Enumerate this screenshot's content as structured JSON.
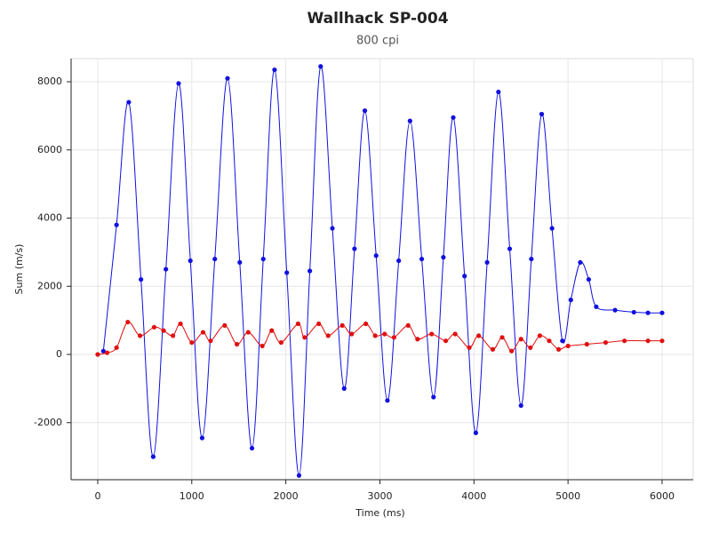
{
  "chart_data": {
    "type": "line",
    "title": "Wallhack SP-004",
    "subtitle": "800 cpi",
    "x_label": "Time (ms)",
    "y_label": "Sum (m/s)",
    "xlim": [
      -283,
      6331
    ],
    "ylim": [
      -3674,
      8678
    ],
    "xticks": [
      0,
      1000,
      2000,
      3000,
      4000,
      5000,
      6000
    ],
    "yticks": [
      -2000,
      0,
      2000,
      4000,
      6000,
      8000
    ],
    "grid": true,
    "series": [
      {
        "color": "#1010e0",
        "x": [
          60,
          200,
          330,
          460,
          590,
          725,
          860,
          985,
          1110,
          1245,
          1380,
          1510,
          1640,
          1760,
          1880,
          2010,
          2140,
          2255,
          2370,
          2495,
          2620,
          2730,
          2840,
          2960,
          3080,
          3200,
          3320,
          3445,
          3570,
          3675,
          3780,
          3900,
          4020,
          4140,
          4260,
          4380,
          4500,
          4610,
          4720,
          4830,
          4940,
          5030,
          5130,
          5220,
          5300,
          5500,
          5700,
          5850,
          6000
        ],
        "values": [
          100,
          3800,
          7400,
          2200,
          -3000,
          2500,
          7950,
          2750,
          -2450,
          2800,
          8100,
          2700,
          -2750,
          2800,
          8350,
          2400,
          -3550,
          2450,
          8450,
          3700,
          -1000,
          3100,
          7150,
          2900,
          -1350,
          2750,
          6850,
          2800,
          -1250,
          2850,
          6950,
          2300,
          -2300,
          2700,
          7700,
          3100,
          -1500,
          2800,
          7050,
          3700,
          400,
          1600,
          2700,
          2200,
          1400,
          1300,
          1240,
          1220,
          1220
        ]
      },
      {
        "color": "#e01010",
        "x": [
          0,
          100,
          200,
          320,
          450,
          600,
          700,
          800,
          880,
          1000,
          1120,
          1200,
          1350,
          1480,
          1600,
          1750,
          1850,
          1950,
          2130,
          2200,
          2350,
          2450,
          2600,
          2700,
          2850,
          2950,
          3050,
          3150,
          3300,
          3400,
          3550,
          3700,
          3800,
          3950,
          4050,
          4200,
          4300,
          4400,
          4500,
          4600,
          4700,
          4800,
          4900,
          5000,
          5200,
          5400,
          5600,
          5850,
          6000
        ],
        "values": [
          0,
          50,
          200,
          950,
          550,
          800,
          700,
          550,
          900,
          350,
          650,
          400,
          850,
          300,
          650,
          250,
          700,
          350,
          900,
          500,
          900,
          550,
          850,
          600,
          900,
          550,
          600,
          500,
          850,
          450,
          600,
          400,
          600,
          200,
          550,
          150,
          500,
          100,
          450,
          200,
          550,
          400,
          150,
          250,
          300,
          350,
          400,
          400,
          400
        ]
      }
    ]
  }
}
